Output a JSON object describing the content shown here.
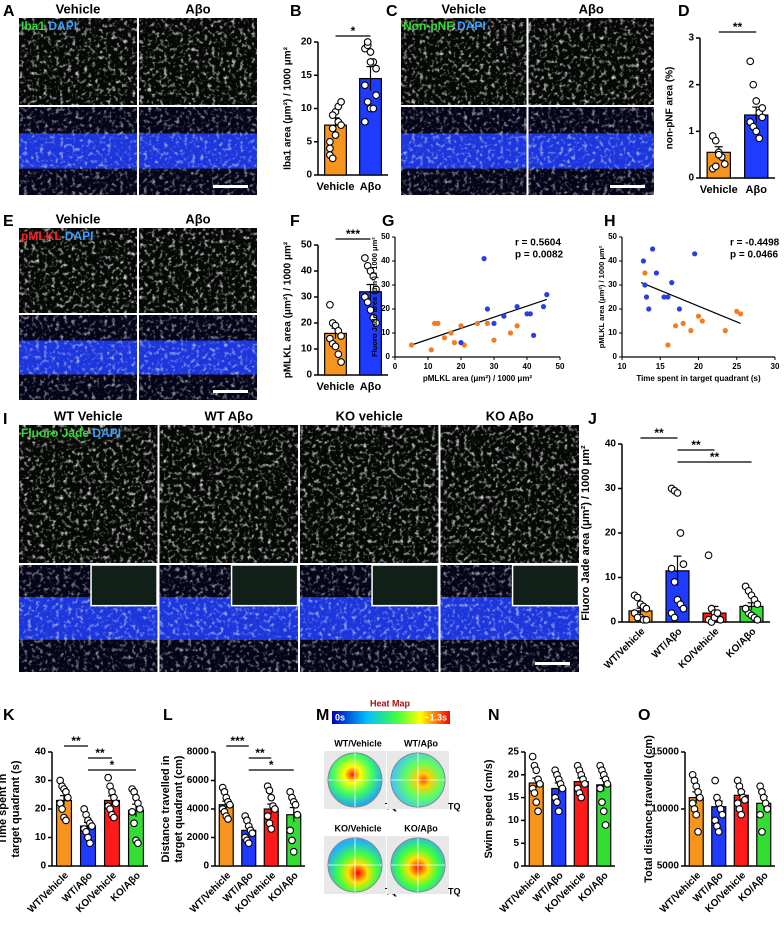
{
  "chart_data": [
    {
      "type": "bar",
      "panel": "B",
      "ylabel": "Iba1 area (μm²) / 1000 μm²",
      "categories": [
        "Vehicle",
        "Aβo"
      ],
      "values": [
        7.5,
        14.5
      ],
      "errors": [
        1.1,
        1.8
      ],
      "colors": [
        "#f7941d",
        "#1f3bff"
      ],
      "points": [
        [
          5,
          7,
          9.5,
          10.3,
          11,
          3,
          2.5,
          6,
          8,
          7.5,
          4,
          9
        ],
        [
          19,
          19.5,
          18.5,
          17,
          16,
          13.5,
          11,
          10,
          10,
          12,
          8,
          20,
          17
        ]
      ],
      "ylim": [
        0,
        20
      ],
      "yticks": [
        0,
        5,
        10,
        15,
        20
      ],
      "significance": [
        {
          "from": 0,
          "to": 1,
          "label": "*"
        }
      ]
    },
    {
      "type": "bar",
      "panel": "D",
      "ylabel": "non-pNF area (%)",
      "categories": [
        "Vehicle",
        "Aβo"
      ],
      "values": [
        0.55,
        1.35
      ],
      "errors": [
        0.12,
        0.17
      ],
      "colors": [
        "#f7941d",
        "#1f3bff"
      ],
      "points": [
        [
          0.9,
          0.8,
          0.55,
          0.45,
          0.3,
          0.2,
          0.25,
          0.5
        ],
        [
          2.5,
          2.0,
          1.65,
          1.4,
          1.3,
          1.2,
          1.1,
          1.0,
          0.85,
          1.5
        ]
      ],
      "ylim": [
        0,
        3
      ],
      "yticks": [
        0,
        1,
        2,
        3
      ],
      "significance": [
        {
          "from": 0,
          "to": 1,
          "label": "**"
        }
      ]
    },
    {
      "type": "bar",
      "panel": "F",
      "ylabel": "pMLKL area (μm²) / 1000 μm²",
      "categories": [
        "Vehicle",
        "Aβo"
      ],
      "values": [
        16,
        32
      ],
      "errors": [
        2,
        2.8
      ],
      "colors": [
        "#f7941d",
        "#1f3bff"
      ],
      "points": [
        [
          27,
          20,
          19,
          17,
          15,
          14,
          12,
          11,
          8,
          5
        ],
        [
          45,
          42,
          40,
          38,
          33,
          30,
          28,
          25,
          22,
          20
        ]
      ],
      "ylim": [
        0,
        50
      ],
      "yticks": [
        0,
        10,
        20,
        30,
        40,
        50
      ],
      "significance": [
        {
          "from": 0,
          "to": 1,
          "label": "***"
        }
      ]
    },
    {
      "type": "scatter",
      "panel": "G",
      "xlabel": "pMLKL area (μm²) / 1000 μm²",
      "ylabel": "Fluoro Jade area (μm²) / 1000 μm²",
      "series": [
        {
          "color": "#f47b20",
          "x": [
            5,
            11,
            12,
            13,
            15,
            17,
            18,
            20,
            21,
            25,
            28,
            30,
            35,
            37
          ],
          "y": [
            5,
            3,
            14,
            14,
            8,
            10,
            6,
            13,
            5,
            14,
            14,
            7,
            10,
            13
          ]
        },
        {
          "color": "#2a3fe0",
          "x": [
            20,
            27,
            28,
            30,
            33,
            37,
            40,
            41,
            42,
            45,
            46
          ],
          "y": [
            6,
            41,
            20,
            14,
            17,
            21,
            18,
            18,
            9,
            21,
            26
          ]
        }
      ],
      "fit": {
        "x": [
          5,
          46
        ],
        "y": [
          5,
          24
        ]
      },
      "annotations": [
        "r = 0.5604",
        "p = 0.0082"
      ],
      "xlim": [
        0,
        50
      ],
      "xticks": [
        0,
        10,
        20,
        30,
        40,
        50
      ],
      "ylim": [
        0,
        50
      ],
      "yticks": [
        0,
        10,
        20,
        30,
        40,
        50
      ]
    },
    {
      "type": "scatter",
      "panel": "H",
      "xlabel": "Time spent in target quadrant (s)",
      "ylabel": "pMLKL area (μm²) / 1000 μm²",
      "series": [
        {
          "color": "#f47b20",
          "x": [
            13,
            16,
            17,
            18,
            19,
            20,
            20.5,
            23.5,
            25,
            25.5
          ],
          "y": [
            35,
            5,
            13,
            14,
            11,
            17,
            15,
            11,
            19,
            18
          ]
        },
        {
          "color": "#2a3fe0",
          "x": [
            12.8,
            13,
            13.2,
            13.5,
            14,
            14.5,
            15.5,
            16,
            16.5,
            17.5,
            19.5
          ],
          "y": [
            40,
            30,
            25,
            20,
            45,
            35,
            25,
            25,
            31,
            20,
            43
          ]
        }
      ],
      "fit": {
        "x": [
          12.5,
          25.5
        ],
        "y": [
          31,
          14
        ]
      },
      "annotations": [
        "r = -0.4498",
        "p = 0.0466"
      ],
      "xlim": [
        10,
        30
      ],
      "xticks": [
        10,
        15,
        20,
        25,
        30
      ],
      "ylim": [
        0,
        50
      ],
      "yticks": [
        0,
        10,
        20,
        30,
        40,
        50
      ]
    },
    {
      "type": "bar",
      "panel": "J",
      "ylabel": "Fluoro Jade area (μm²) / 1000 μm²",
      "categories": [
        "WT/Vehicle",
        "WT/Aβo",
        "KO/Vehicle",
        "KO/Aβo"
      ],
      "values": [
        2.5,
        11.5,
        2,
        3.5
      ],
      "errors": [
        0.6,
        3.3,
        1.5,
        0.8
      ],
      "colors": [
        "#f7941d",
        "#1f3bff",
        "#ff1a1a",
        "#33dd33"
      ],
      "points": [
        [
          6,
          5.5,
          4,
          3.5,
          3,
          2,
          1.5,
          1,
          0.5,
          0.5,
          2,
          1
        ],
        [
          30,
          29.5,
          29,
          20,
          13,
          12,
          9,
          5,
          4,
          3,
          2,
          1
        ],
        [
          15,
          3,
          2,
          1,
          0.5,
          0.5,
          0,
          1,
          2
        ],
        [
          8,
          7,
          6,
          5,
          4,
          3,
          2,
          1.5,
          1,
          0.5,
          3
        ]
      ],
      "ylim": [
        0,
        40
      ],
      "yticks": [
        0,
        10,
        20,
        30,
        40
      ],
      "significance": [
        {
          "from": 0,
          "to": 1,
          "label": "**"
        },
        {
          "from": 1,
          "to": 2,
          "label": "**"
        },
        {
          "from": 1,
          "to": 3,
          "label": "**"
        }
      ]
    },
    {
      "type": "bar",
      "panel": "K",
      "ylabel": [
        "Time spent in",
        "target quadrant (s)"
      ],
      "categories": [
        "WT/Vehicle",
        "WT/Aβo",
        "KO/Vehicle",
        "KO/Aβo"
      ],
      "values": [
        23,
        14,
        23,
        19.5
      ],
      "errors": [
        1.7,
        1.3,
        1.6,
        2.2
      ],
      "colors": [
        "#f7941d",
        "#1f3bff",
        "#ff1a1a",
        "#33dd33"
      ],
      "points": [
        [
          30,
          28,
          27,
          26,
          24,
          22,
          20,
          17,
          16
        ],
        [
          20,
          18,
          16,
          15,
          14,
          13,
          12,
          10,
          8
        ],
        [
          31,
          28,
          26,
          24,
          22,
          21,
          20,
          18,
          17
        ],
        [
          27,
          26,
          24,
          22,
          20,
          19,
          15,
          9,
          8
        ]
      ],
      "ylim": [
        0,
        40
      ],
      "yticks": [
        0,
        10,
        20,
        30,
        40
      ],
      "significance": [
        {
          "from": 0,
          "to": 1,
          "label": "**"
        },
        {
          "from": 1,
          "to": 2,
          "label": "**"
        },
        {
          "from": 1,
          "to": 3,
          "label": "*"
        }
      ]
    },
    {
      "type": "bar",
      "panel": "L",
      "ylabel": [
        "Distance travelled in",
        "target quadrant (cm)"
      ],
      "categories": [
        "WT/Vehicle",
        "WT/Aβo",
        "KO/Vehicle",
        "KO/Aβo"
      ],
      "values": [
        4300,
        2500,
        4000,
        3600
      ],
      "errors": [
        250,
        250,
        350,
        500
      ],
      "colors": [
        "#f7941d",
        "#1f3bff",
        "#ff1a1a",
        "#33dd33"
      ],
      "points": [
        [
          5500,
          5200,
          4800,
          4500,
          4300,
          4000,
          3800,
          3500,
          3300
        ],
        [
          3500,
          3200,
          2800,
          2500,
          2300,
          2000,
          1800,
          1600
        ],
        [
          5600,
          5300,
          4800,
          4200,
          4000,
          3500,
          3000,
          2600
        ],
        [
          5200,
          4800,
          4500,
          4300,
          3600,
          2500,
          1800,
          1000
        ]
      ],
      "ylim": [
        0,
        8000
      ],
      "yticks": [
        0,
        2000,
        4000,
        6000,
        8000
      ],
      "significance": [
        {
          "from": 0,
          "to": 1,
          "label": "***"
        },
        {
          "from": 1,
          "to": 2,
          "label": "**"
        },
        {
          "from": 1,
          "to": 3,
          "label": "*"
        }
      ]
    },
    {
      "type": "bar",
      "panel": "N",
      "ylabel": "Swim speed (cm/s)",
      "categories": [
        "WT/Vehicle",
        "WT/Aβo",
        "KO/Vehicle",
        "KO/Aβo"
      ],
      "values": [
        18.2,
        17,
        18.5,
        17.8
      ],
      "errors": [
        1.1,
        1.2,
        0.8,
        1.4
      ],
      "colors": [
        "#f7941d",
        "#1f3bff",
        "#ff1a1a",
        "#33dd33"
      ],
      "points": [
        [
          24,
          22,
          21,
          19,
          18,
          17,
          16,
          14,
          12
        ],
        [
          21,
          20,
          19,
          18,
          17,
          15,
          14,
          12
        ],
        [
          22,
          21,
          20,
          19,
          18,
          17,
          16,
          15
        ],
        [
          22,
          21,
          20,
          19,
          18,
          17,
          14,
          12,
          9
        ]
      ],
      "ylim": [
        0,
        25
      ],
      "yticks": [
        0,
        5,
        10,
        15,
        20,
        25
      ],
      "significance": []
    },
    {
      "type": "bar",
      "panel": "O",
      "ylabel": "Total distance travelled (cm)",
      "categories": [
        "WT/Vehicle",
        "WT/Aβo",
        "KO/Vehicle",
        "KO/Aβo"
      ],
      "values": [
        11000,
        10200,
        11200,
        10500
      ],
      "errors": [
        500,
        500,
        350,
        600
      ],
      "colors": [
        "#f7941d",
        "#1f3bff",
        "#ff1a1a",
        "#33dd33"
      ],
      "points": [
        [
          13000,
          12500,
          12000,
          11500,
          11000,
          10500,
          10000,
          9500,
          8000
        ],
        [
          12500,
          11000,
          10500,
          10000,
          9500,
          9000,
          8500,
          8000
        ],
        [
          12500,
          12000,
          11500,
          11000,
          10800,
          10500,
          10000,
          9500
        ],
        [
          12000,
          11500,
          11000,
          10500,
          10000,
          9500,
          8000
        ]
      ],
      "ylim": [
        5000,
        15000
      ],
      "yticks": [
        5000,
        10000,
        15000
      ],
      "significance": []
    }
  ],
  "image_panels": [
    {
      "panel": "A",
      "columns": [
        "Vehicle",
        "Aβo"
      ],
      "stain": "Iba1",
      "stain_color": "#33dd33",
      "counterstain": "DAPI",
      "counterstain_color": "#3aa0ff"
    },
    {
      "panel": "C",
      "columns": [
        "Vehicle",
        "Aβo"
      ],
      "stain": "Non-pNF",
      "stain_color": "#33dd33",
      "counterstain": "DAPI",
      "counterstain_color": "#3aa0ff"
    },
    {
      "panel": "E",
      "columns": [
        "Vehicle",
        "Aβo"
      ],
      "stain": "pMLKL",
      "stain_color": "#ff2020",
      "counterstain": "DAPI",
      "counterstain_color": "#3aa0ff"
    },
    {
      "panel": "I",
      "columns": [
        "WT Vehicle",
        "WT Aβo",
        "KO vehicle",
        "KO Aβo"
      ],
      "stain": "Fluoro Jade",
      "stain_color": "#33dd33",
      "counterstain": "DAPI",
      "counterstain_color": "#3aa0ff"
    }
  ],
  "heat_map": {
    "panel": "M",
    "title": "Heat Map",
    "scale_min": "0s",
    "scale_max": "~1.3s",
    "maps": [
      {
        "label": "WT/Vehicle",
        "quadrant": "TQ"
      },
      {
        "label": "WT/Aβo",
        "quadrant": "TQ"
      },
      {
        "label": "KO/Vehicle",
        "quadrant": "TQ"
      },
      {
        "label": "KO/Aβo",
        "quadrant": "TQ"
      }
    ]
  }
}
